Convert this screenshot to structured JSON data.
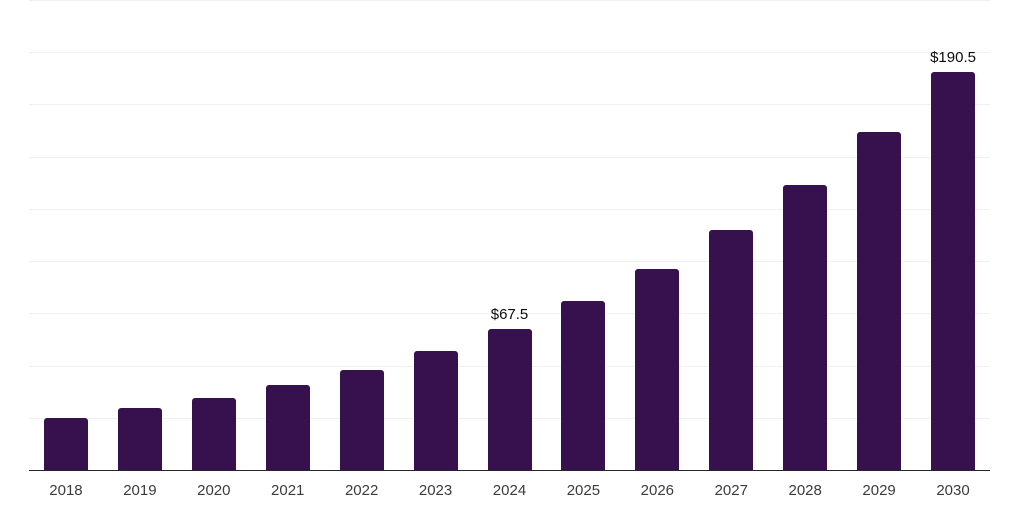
{
  "chart_data": {
    "type": "bar",
    "title": "",
    "xlabel": "",
    "ylabel": "",
    "categories": [
      "2018",
      "2019",
      "2020",
      "2021",
      "2022",
      "2023",
      "2024",
      "2025",
      "2026",
      "2027",
      "2028",
      "2029",
      "2030"
    ],
    "values": [
      24.8,
      29.7,
      34.5,
      40.9,
      47.8,
      57.2,
      67.5,
      80.7,
      96.0,
      114.8,
      136.5,
      162.0,
      190.5
    ],
    "point_labels": [
      "",
      "",
      "",
      "",
      "",
      "",
      "$67.5",
      "",
      "",
      "",
      "",
      "",
      "$190.5"
    ],
    "ylim": [
      0,
      225
    ],
    "gridline_interval": 25,
    "grid": true,
    "legend": "none"
  },
  "style": {
    "bar_color": "#36114E",
    "axis_line_color": "#262626",
    "gridline_color": "#f0f0f0",
    "tick_label_color": "#3c3c3c",
    "data_label_color": "#0d0d0d",
    "background_color": "#ffffff"
  }
}
